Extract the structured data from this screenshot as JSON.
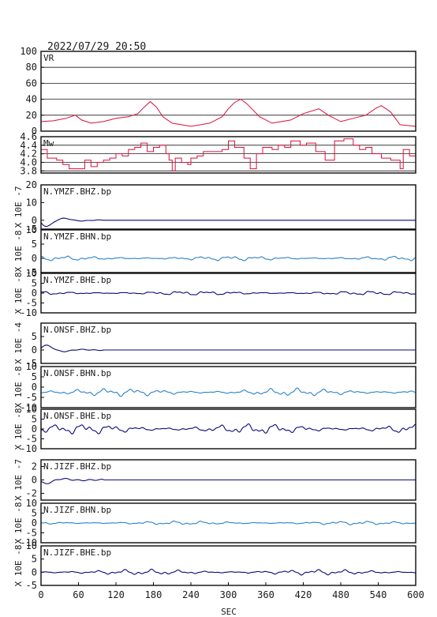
{
  "header": {
    "datetime": "2022/07/29 20:50"
  },
  "colors": {
    "trace": "#0a0a78",
    "trace_light": "#2a82c8",
    "vr_mw": "#d8103c",
    "frame": "#0a0a0a",
    "grid": "#1a1a1a"
  },
  "chart_data": {
    "type": "line",
    "xlabel": "SEC",
    "xlim": [
      0,
      600
    ],
    "xticks": [
      "0",
      "60",
      "120",
      "180",
      "240",
      "300",
      "360",
      "420",
      "480",
      "540",
      "600"
    ],
    "panels": [
      {
        "label": "VR",
        "ylabel": "",
        "ylim": [
          0,
          100
        ],
        "yticks": [
          "100",
          "80",
          "60",
          "40",
          "20",
          "0"
        ],
        "grid": true,
        "color": "vr_mw",
        "x": [
          0,
          20,
          40,
          55,
          65,
          80,
          100,
          120,
          140,
          155,
          165,
          175,
          185,
          195,
          210,
          240,
          270,
          290,
          300,
          310,
          320,
          330,
          350,
          370,
          400,
          420,
          445,
          460,
          480,
          500,
          520,
          535,
          545,
          560,
          575,
          600
        ],
        "y": [
          12,
          13,
          16,
          20,
          14,
          10,
          12,
          16,
          18,
          22,
          30,
          37,
          30,
          18,
          10,
          6,
          10,
          18,
          28,
          36,
          40,
          34,
          18,
          10,
          14,
          22,
          28,
          20,
          12,
          16,
          20,
          28,
          32,
          24,
          8,
          6
        ]
      },
      {
        "label": "Mw",
        "ylabel": "",
        "ylim": [
          3.75,
          4.6
        ],
        "yticks": [
          "4.6",
          "4.4",
          "4.2",
          "4.0",
          "3.8"
        ],
        "grid": true,
        "color": "vr_mw",
        "x": [
          0,
          10,
          25,
          35,
          45,
          60,
          70,
          80,
          90,
          100,
          110,
          120,
          130,
          140,
          150,
          160,
          170,
          180,
          190,
          200,
          205,
          210,
          215,
          225,
          235,
          240,
          250,
          260,
          275,
          290,
          300,
          310,
          325,
          335,
          345,
          355,
          370,
          380,
          390,
          400,
          415,
          425,
          440,
          455,
          470,
          485,
          500,
          510,
          520,
          530,
          545,
          560,
          575,
          580,
          590,
          600
        ],
        "y": [
          4.3,
          4.1,
          4.05,
          3.95,
          3.85,
          3.85,
          4.05,
          3.9,
          4.0,
          4.05,
          4.1,
          4.2,
          4.15,
          4.3,
          4.35,
          4.45,
          4.25,
          4.35,
          4.4,
          4.2,
          4.05,
          3.8,
          4.1,
          4.0,
          3.95,
          4.1,
          4.15,
          4.25,
          4.25,
          4.3,
          4.5,
          4.35,
          4.1,
          3.85,
          4.2,
          4.35,
          4.3,
          4.4,
          4.35,
          4.5,
          4.4,
          4.45,
          4.25,
          4.05,
          4.5,
          4.55,
          4.4,
          4.3,
          4.35,
          4.2,
          4.1,
          4.05,
          3.85,
          4.3,
          4.15,
          4.35
        ]
      },
      {
        "label": "N.YMZF.BHZ.bp",
        "ylabel": "X 10E -7",
        "ylim": [
          -5,
          20
        ],
        "yticks": [
          "20",
          "10",
          "0",
          "-5"
        ],
        "color": "trace",
        "kind": "Z",
        "amp": 0.6,
        "seed": 1
      },
      {
        "label": "N.YMZF.BHN.bp",
        "ylabel": "X 10E -8",
        "ylim": [
          -5,
          10
        ],
        "yticks": [
          "10",
          "5",
          "0",
          "-5"
        ],
        "color": "trace_light",
        "kind": "H",
        "amp": 0.7,
        "seed": 2
      },
      {
        "label": "N.YMZF.BHE.bp",
        "ylabel": "X 10E -8",
        "ylim": [
          -10,
          10
        ],
        "yticks": [
          "10",
          "5",
          "0",
          "-5",
          "-10"
        ],
        "color": "trace",
        "kind": "H",
        "amp": 0.9,
        "seed": 3
      },
      {
        "label": "N.ONSF.BHZ.bp",
        "ylabel": "X 10E -4",
        "ylim": [
          -5,
          10
        ],
        "yticks": [
          "5",
          "0",
          "-5"
        ],
        "color": "trace",
        "kind": "Z",
        "amp": 0.6,
        "seed": 4
      },
      {
        "label": "N.ONSF.BHN.bp",
        "ylabel": "X 10E -8",
        "ylim": [
          -10,
          10
        ],
        "yticks": [
          "10",
          "5",
          "0",
          "-5",
          "-10"
        ],
        "color": "trace_light",
        "kind": "H",
        "amp": 1.6,
        "offset": -2.5,
        "seed": 5
      },
      {
        "label": "N.ONSF.BHE.bp",
        "ylabel": "X 10E -8",
        "ylim": [
          -10,
          10
        ],
        "yticks": [
          "10",
          "5",
          "0",
          "-5",
          "-10"
        ],
        "color": "trace",
        "kind": "H",
        "amp": 2.2,
        "seed": 6
      },
      {
        "label": "N.JIZF.BHZ.bp",
        "ylabel": "X 10E -7",
        "ylim": [
          -3,
          3
        ],
        "yticks": [
          "2",
          "0",
          "-2"
        ],
        "color": "trace",
        "kind": "Z",
        "amp": 0.4,
        "seed": 7
      },
      {
        "label": "N.JIZF.BHN.bp",
        "ylabel": "X 10E -8",
        "ylim": [
          -10,
          10
        ],
        "yticks": [
          "10",
          "5",
          "0",
          "-5",
          "-10"
        ],
        "color": "trace_light",
        "kind": "H",
        "amp": 0.8,
        "seed": 8
      },
      {
        "label": "N.JIZF.BHE.bp",
        "ylabel": "X 10E -8",
        "ylim": [
          -5,
          10
        ],
        "yticks": [
          "10",
          "5",
          "0",
          "-5"
        ],
        "color": "trace",
        "kind": "H",
        "amp": 0.9,
        "seed": 9
      }
    ]
  }
}
